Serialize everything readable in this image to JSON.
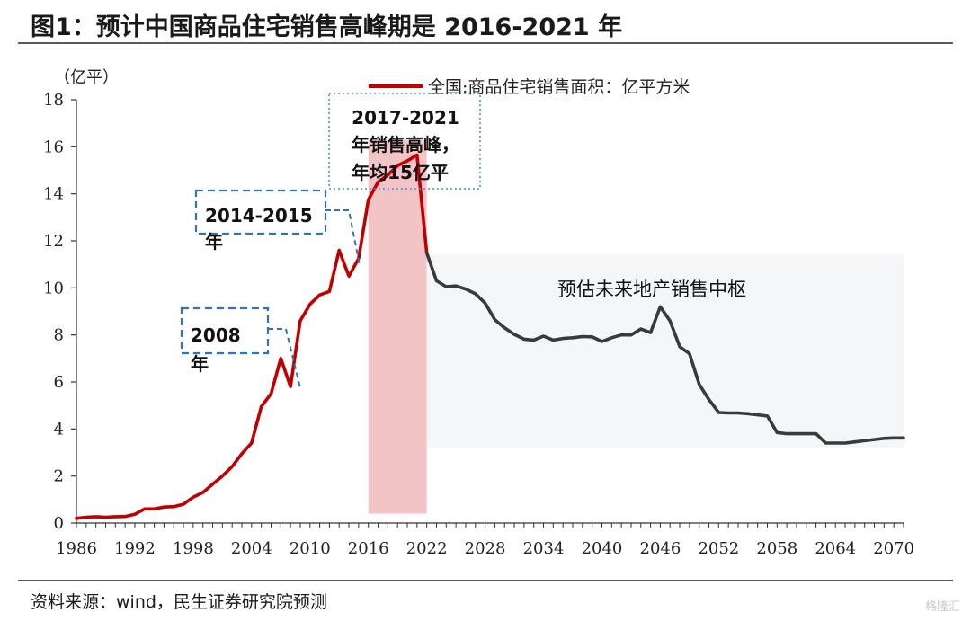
{
  "title": "图1：预计中国商品住宅销售高峰期是 2016-2021 年",
  "source": "资料来源：wind，民生证券研究院预测",
  "watermark": "格隆汇",
  "chart_data": {
    "type": "line",
    "ylabel": "（亿平）",
    "ylim": [
      0,
      18
    ],
    "yticks": [
      0,
      2,
      4,
      6,
      8,
      10,
      12,
      14,
      16,
      18
    ],
    "xlim": [
      1986,
      2071
    ],
    "xticks": [
      1986,
      1992,
      1998,
      2004,
      2010,
      2016,
      2022,
      2028,
      2034,
      2040,
      2046,
      2052,
      2058,
      2064,
      2070
    ],
    "legend": {
      "position": "top",
      "label": "全国:商品住宅销售面积：亿平方米"
    },
    "series": [
      {
        "name": "全国:商品住宅销售面积：亿平方米",
        "color": "#c00000",
        "x": [
          1986,
          1987,
          1988,
          1989,
          1990,
          1991,
          1992,
          1993,
          1994,
          1995,
          1996,
          1997,
          1998,
          1999,
          2000,
          2001,
          2002,
          2003,
          2004,
          2005,
          2006,
          2007,
          2008,
          2009,
          2010,
          2011,
          2012,
          2013,
          2014,
          2015,
          2016,
          2017,
          2018,
          2019,
          2020,
          2021,
          2022
        ],
        "y": [
          0.2,
          0.25,
          0.27,
          0.25,
          0.27,
          0.28,
          0.37,
          0.6,
          0.6,
          0.68,
          0.7,
          0.8,
          1.1,
          1.3,
          1.65,
          2.0,
          2.4,
          2.95,
          3.4,
          4.95,
          5.5,
          7.0,
          5.8,
          8.6,
          9.3,
          9.7,
          9.85,
          11.6,
          10.5,
          11.25,
          13.75,
          14.5,
          14.8,
          15.2,
          15.4,
          15.65,
          11.5
        ]
      },
      {
        "name": "",
        "color": "#3a3a3a",
        "x": [
          2022,
          2023,
          2024,
          2025,
          2026,
          2027,
          2028,
          2029,
          2030,
          2031,
          2032,
          2033,
          2034,
          2035,
          2036,
          2037,
          2038,
          2039,
          2040,
          2041,
          2042,
          2043,
          2044,
          2045,
          2046,
          2047,
          2048,
          2049,
          2050,
          2051,
          2052,
          2053,
          2054,
          2055,
          2056,
          2057,
          2058,
          2059,
          2060,
          2061,
          2062,
          2063,
          2064,
          2065,
          2066,
          2067,
          2068,
          2069,
          2070,
          2071
        ],
        "y": [
          11.5,
          10.3,
          10.05,
          10.08,
          9.95,
          9.75,
          9.35,
          8.65,
          8.3,
          8.02,
          7.82,
          7.78,
          7.95,
          7.78,
          7.85,
          7.88,
          7.93,
          7.92,
          7.72,
          7.88,
          8.0,
          8.0,
          8.25,
          8.1,
          9.2,
          8.6,
          7.5,
          7.2,
          5.9,
          5.25,
          4.7,
          4.68,
          4.68,
          4.65,
          4.6,
          4.55,
          3.85,
          3.8,
          3.8,
          3.8,
          3.8,
          3.4,
          3.4,
          3.4,
          3.45,
          3.5,
          3.55,
          3.6,
          3.62,
          3.62
        ]
      }
    ],
    "bands": [
      {
        "x0": 2016,
        "x1": 2022,
        "y0": 0.4,
        "y1": 16.3,
        "color": "#f2c4c6"
      },
      {
        "x0": 2022,
        "x1": 2071,
        "y0": 3.2,
        "y1": 11.4,
        "color": "#f4f6f8"
      }
    ],
    "annotations": [
      {
        "lines": [
          "2017-2021",
          "年销售高峰，",
          "年均15亿平"
        ]
      },
      {
        "lines": [
          "2014-2015",
          "年"
        ]
      },
      {
        "lines": [
          "2008",
          "年"
        ]
      },
      {
        "lines": [
          "预估未来地产销售中枢"
        ]
      }
    ]
  }
}
